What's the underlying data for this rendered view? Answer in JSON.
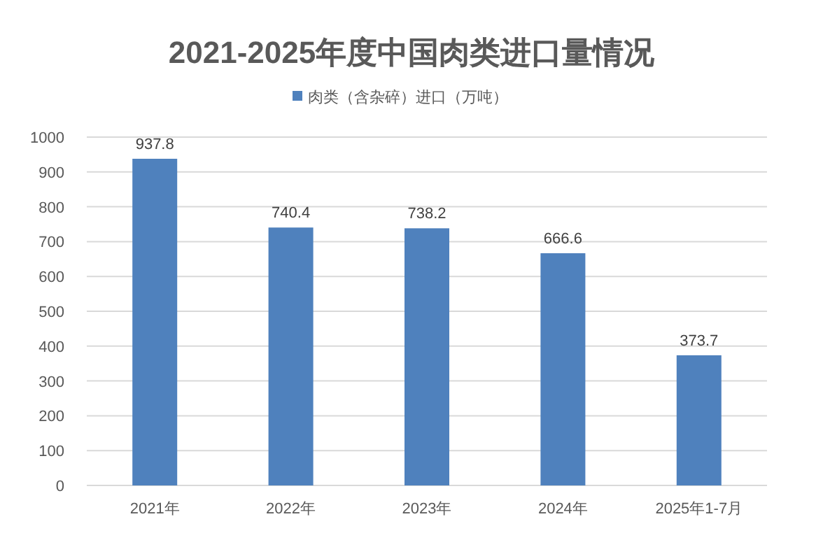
{
  "chart_data": {
    "type": "bar",
    "title": "2021-2025年度中国肉类进口量情况",
    "categories": [
      "2021年",
      "2022年",
      "2023年",
      "2024年",
      "2025年1-7月"
    ],
    "series": [
      {
        "name": "肉类（含杂碎）进口（万吨）",
        "color": "#4f81bd",
        "values": [
          937.8,
          740.4,
          738.2,
          666.6,
          373.7
        ]
      }
    ],
    "ylim": [
      0,
      1000
    ],
    "yticks": [
      0,
      100,
      200,
      300,
      400,
      500,
      600,
      700,
      800,
      900,
      1000
    ],
    "grid": "y",
    "legend": "top",
    "data_labels": true
  }
}
